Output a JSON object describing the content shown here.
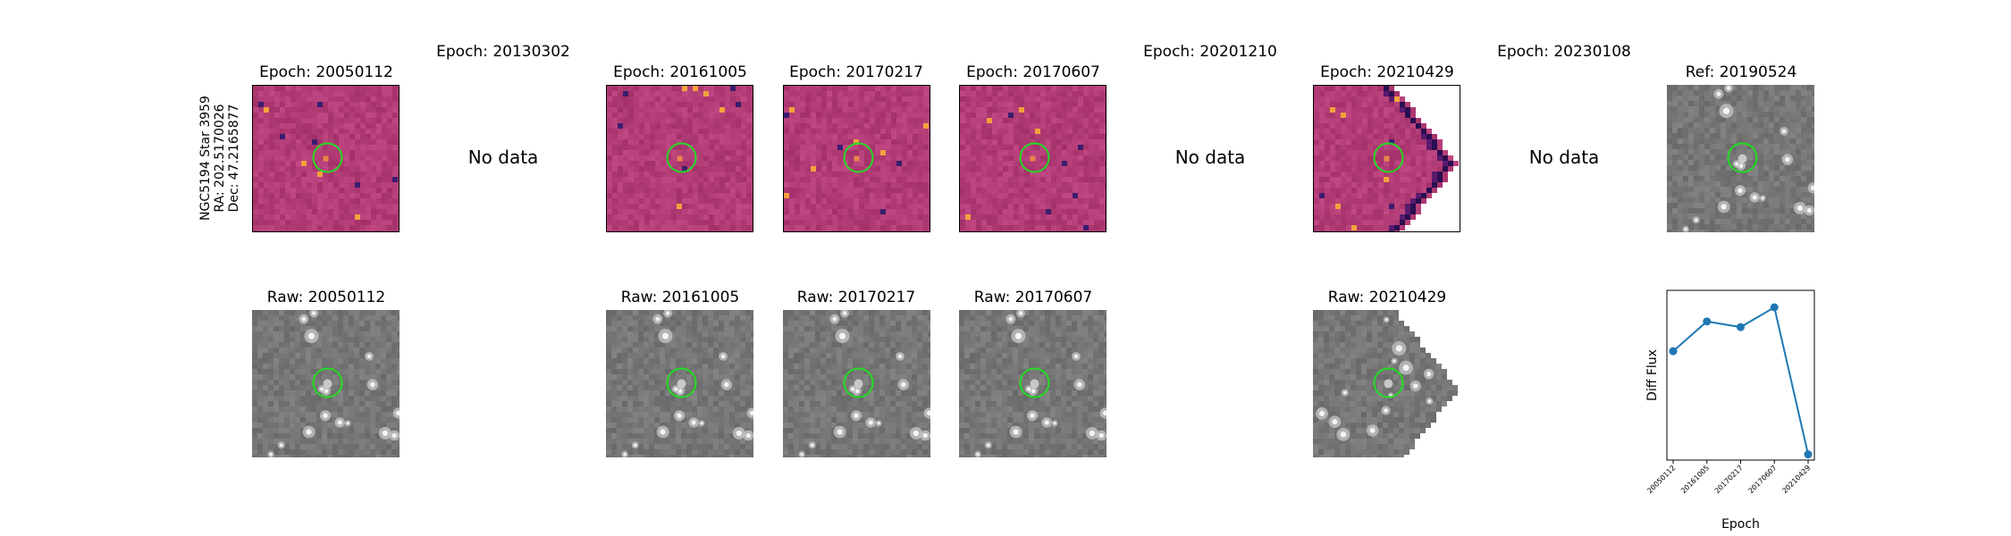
{
  "target": {
    "line1": "NGC5194 Star 3959",
    "line2": "RA: 202.5170026",
    "line3": "Dec: 47.2165877"
  },
  "no_data_label": "No data",
  "top_row": [
    {
      "title": "Epoch: 20050112",
      "has_data": true
    },
    {
      "title": "Epoch: 20130302",
      "has_data": false
    },
    {
      "title": "Epoch: 20161005",
      "has_data": true
    },
    {
      "title": "Epoch: 20170217",
      "has_data": true
    },
    {
      "title": "Epoch: 20170607",
      "has_data": true
    },
    {
      "title": "Epoch: 20201210",
      "has_data": false
    },
    {
      "title": "Epoch: 20210429",
      "has_data": true
    },
    {
      "title": "Epoch: 20230108",
      "has_data": false
    },
    {
      "title": "Ref: 20190524",
      "has_data": true
    }
  ],
  "bottom_row": [
    {
      "title": "Raw: 20050112"
    },
    {
      "title": "Raw: 20161005"
    },
    {
      "title": "Raw: 20170217"
    },
    {
      "title": "Raw: 20170607"
    },
    {
      "title": "Raw: 20210429"
    }
  ],
  "colors": {
    "diff_bg": "#b8407a",
    "raw_bg": "#7d7d7d",
    "circle": "#22dd22",
    "series": "#1f77b4"
  },
  "chart_data": {
    "type": "line",
    "x": [
      "20050112",
      "20161005",
      "20170217",
      "20170607",
      "20210429"
    ],
    "values": [
      0.62,
      0.83,
      0.79,
      0.93,
      -0.11
    ],
    "ylim": [
      -0.15,
      1.05
    ],
    "xlabel": "Epoch",
    "ylabel": "Diff Flux",
    "grid": false,
    "legend": false
  }
}
